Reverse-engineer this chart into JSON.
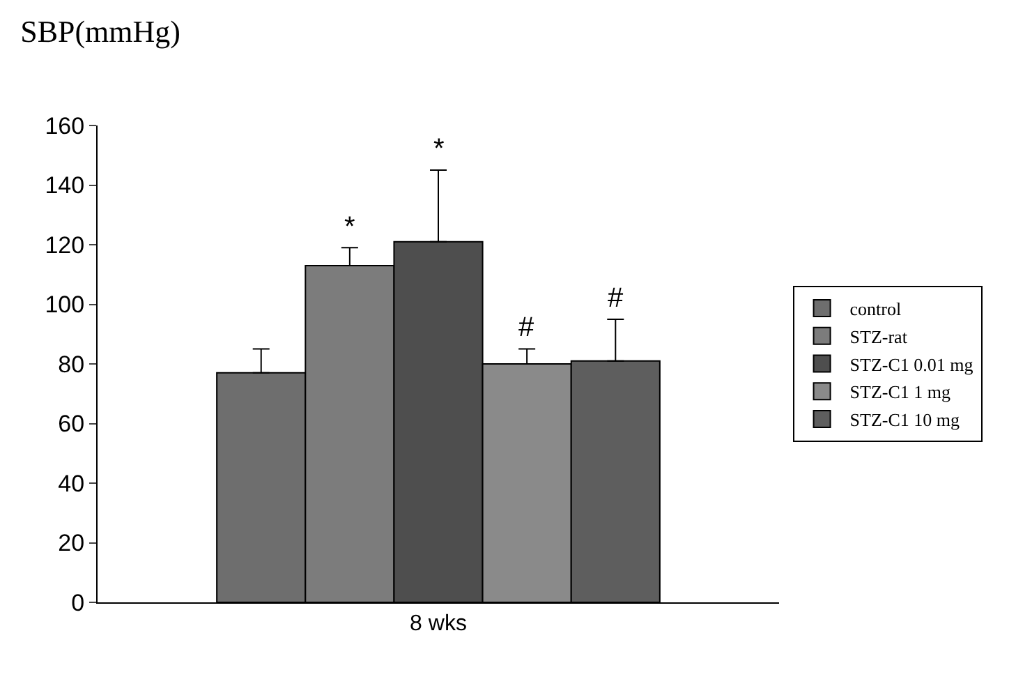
{
  "chart_data": {
    "type": "bar",
    "title": "SBP(mmHg)",
    "categories": [
      "8 wks"
    ],
    "series": [
      {
        "name": "control",
        "color": "#6e6e6e",
        "values": [
          77
        ],
        "errors": [
          [
            77,
            85
          ]
        ]
      },
      {
        "name": "STZ-rat",
        "color": "#7c7c7c",
        "values": [
          113
        ],
        "errors": [
          [
            113,
            119
          ]
        ],
        "value_labels": [
          "*"
        ]
      },
      {
        "name": "STZ-C1 0.01 mg",
        "color": "#4e4e4e",
        "values": [
          121
        ],
        "errors": [
          [
            121,
            145
          ]
        ],
        "value_labels": [
          "*"
        ]
      },
      {
        "name": "STZ-C1 1 mg",
        "color": "#8a8a8a",
        "values": [
          80
        ],
        "errors": [
          [
            80,
            85
          ]
        ],
        "value_labels": [
          "#"
        ]
      },
      {
        "name": "STZ-C1 10 mg",
        "color": "#5e5e5e",
        "values": [
          81
        ],
        "errors": [
          [
            81,
            95
          ]
        ],
        "value_labels": [
          "#"
        ]
      }
    ],
    "ylim": [
      0,
      160
    ],
    "yticks": [
      0,
      20,
      40,
      60,
      80,
      100,
      120,
      140,
      160
    ],
    "legend": "right"
  }
}
